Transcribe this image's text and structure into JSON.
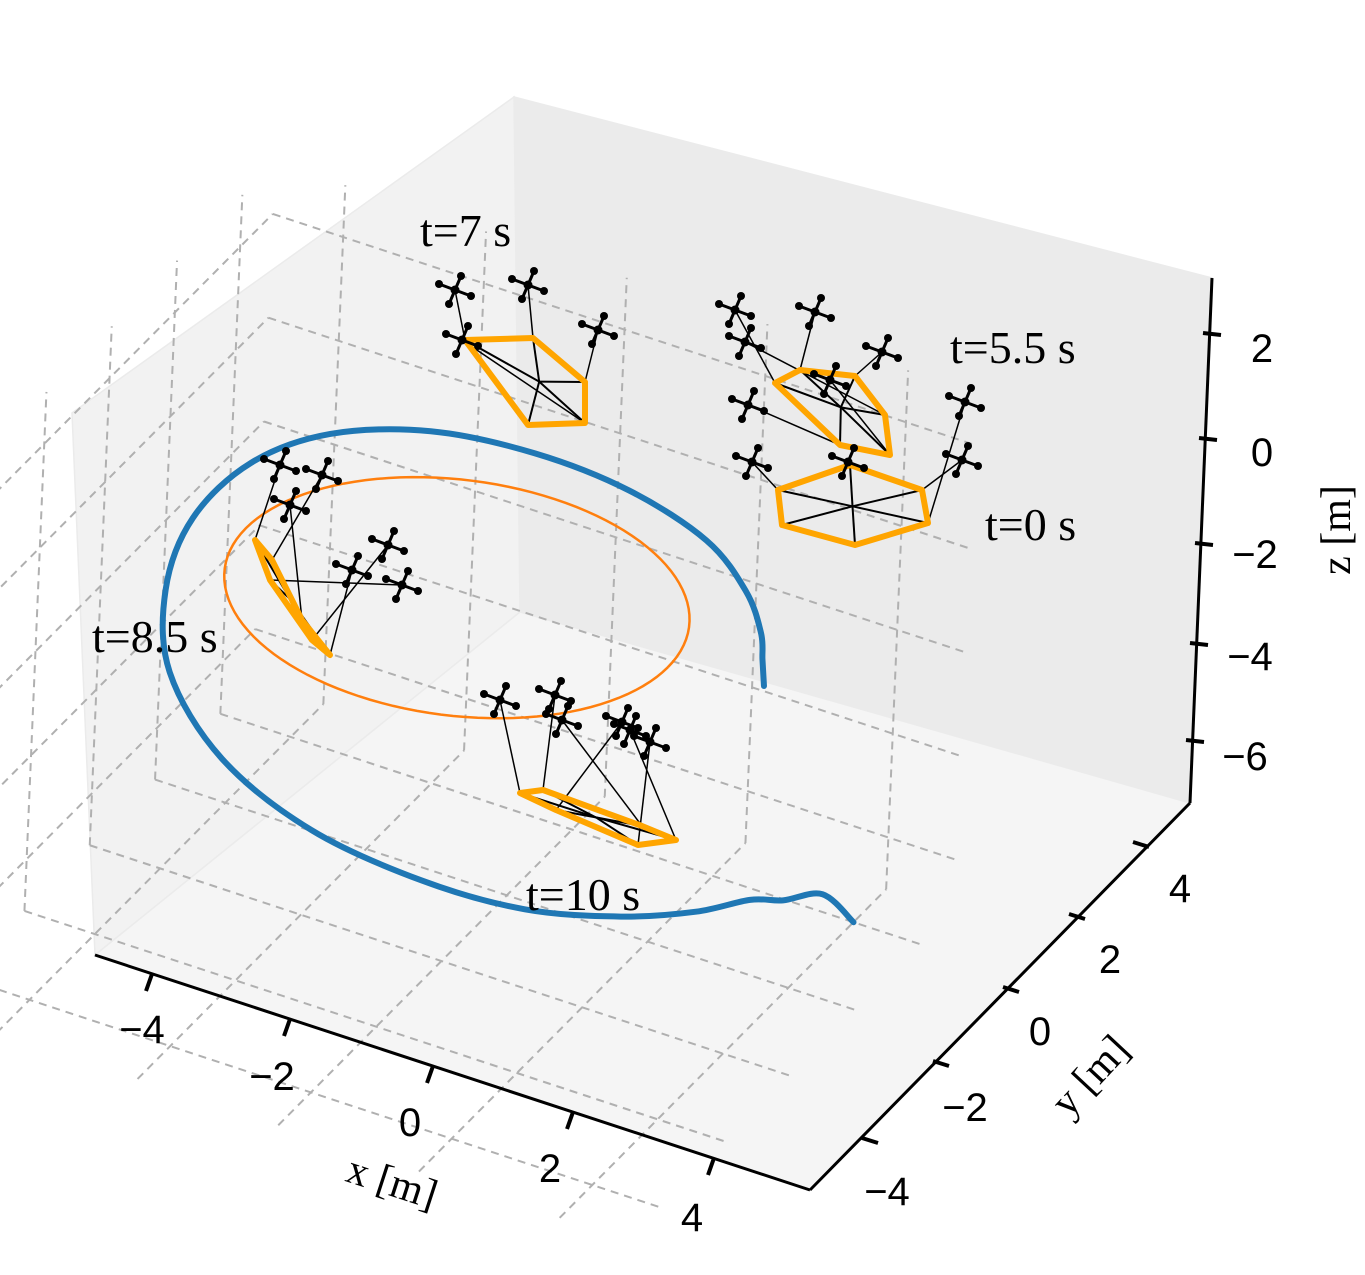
{
  "chart_data": {
    "type": "line",
    "projection": "3d",
    "xlabel": "x [m]",
    "ylabel": "y [m]",
    "zlabel": "z [m]",
    "xlim": [
      -5,
      5
    ],
    "ylim": [
      -5,
      5
    ],
    "zlim": [
      -7,
      3
    ],
    "x_ticks": [
      "−4",
      "−2",
      "0",
      "2",
      "4"
    ],
    "y_ticks": [
      "−4",
      "−2",
      "0",
      "2",
      "4"
    ],
    "z_ticks": [
      "−6",
      "−4",
      "−2",
      "0",
      "2"
    ],
    "x_tick_values": [
      -4,
      -2,
      0,
      2,
      4
    ],
    "y_tick_values": [
      -4,
      -2,
      0,
      2,
      4
    ],
    "z_tick_values": [
      -6,
      -4,
      -2,
      0,
      2
    ],
    "grid": true,
    "series": [
      {
        "color": "#1f77b4",
        "x": [
          4.0,
          3.9,
          3.7,
          3.5,
          3.1,
          2.4,
          1.4,
          0.2,
          -1.2,
          -2.5,
          -3.5,
          -4.0,
          -4.1,
          -3.8,
          -3.1,
          -2.0,
          -0.7,
          0.6,
          1.8,
          2.6,
          3.1,
          3.4,
          3.6,
          3.7
        ],
        "y": [
          4.0,
          3.2,
          2.4,
          1.8,
          1.0,
          0.2,
          -0.6,
          -1.2,
          -1.6,
          -1.6,
          -1.1,
          -0.2,
          0.8,
          1.9,
          2.8,
          3.5,
          3.9,
          4.0,
          3.8,
          3.3,
          2.7,
          2.1,
          1.7,
          1.5
        ],
        "z": [
          -7.0,
          -6.0,
          -5.7,
          -5.4,
          -5.3,
          -5.2,
          -5.0,
          -4.6,
          -4.0,
          -3.2,
          -2.3,
          -1.5,
          -0.8,
          -0.3,
          0.0,
          0.1,
          0.0,
          -0.2,
          -0.5,
          -0.8,
          -1.0,
          -1.0,
          -1.0,
          -1.0
        ]
      },
      {
        "color": "#ff7f0e",
        "shape": "circle",
        "center": [
          0,
          0,
          0
        ],
        "radius": 3
      }
    ],
    "formation_color": "#ffa500",
    "annotations": [
      "t=0 s",
      "t=5.5 s",
      "t=7 s",
      "t=8.5 s",
      "t=10 s"
    ]
  }
}
